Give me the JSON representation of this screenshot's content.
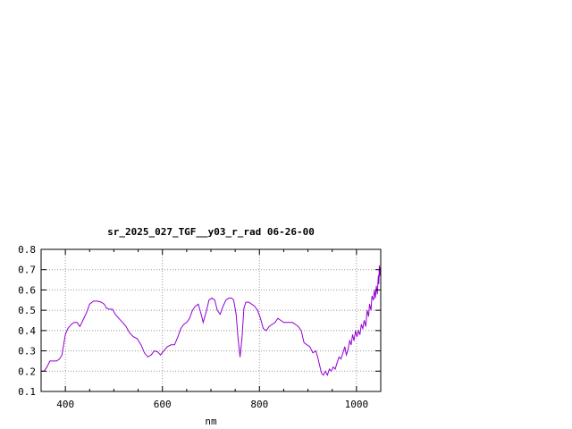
{
  "chart_data": {
    "type": "line",
    "title": "sr_2025_027_TGF__y03_r_rad 06-26-00",
    "xlabel": "nm",
    "ylabel": "",
    "xlim": [
      350,
      1050
    ],
    "ylim": [
      0.1,
      0.8
    ],
    "x_ticks": [
      "400",
      "600",
      "800",
      "1000"
    ],
    "y_ticks": [
      "0.1",
      "0.2",
      "0.3",
      "0.4",
      "0.5",
      "0.6",
      "0.7",
      "0.8"
    ],
    "grid": true,
    "legend": "none",
    "series": [
      {
        "color": "#9400d3",
        "points": [
          [
            350,
            0.2
          ],
          [
            356,
            0.2
          ],
          [
            362,
            0.22
          ],
          [
            368,
            0.25
          ],
          [
            375,
            0.25
          ],
          [
            382,
            0.25
          ],
          [
            388,
            0.26
          ],
          [
            393,
            0.28
          ],
          [
            400,
            0.38
          ],
          [
            405,
            0.41
          ],
          [
            412,
            0.43
          ],
          [
            418,
            0.44
          ],
          [
            424,
            0.44
          ],
          [
            430,
            0.42
          ],
          [
            436,
            0.45
          ],
          [
            444,
            0.49
          ],
          [
            450,
            0.53
          ],
          [
            458,
            0.545
          ],
          [
            466,
            0.545
          ],
          [
            474,
            0.54
          ],
          [
            480,
            0.53
          ],
          [
            485,
            0.51
          ],
          [
            490,
            0.505
          ],
          [
            497,
            0.505
          ],
          [
            503,
            0.48
          ],
          [
            510,
            0.46
          ],
          [
            518,
            0.44
          ],
          [
            525,
            0.42
          ],
          [
            532,
            0.39
          ],
          [
            540,
            0.37
          ],
          [
            548,
            0.36
          ],
          [
            556,
            0.33
          ],
          [
            563,
            0.29
          ],
          [
            570,
            0.27
          ],
          [
            577,
            0.28
          ],
          [
            583,
            0.3
          ],
          [
            590,
            0.295
          ],
          [
            596,
            0.28
          ],
          [
            603,
            0.3
          ],
          [
            610,
            0.32
          ],
          [
            618,
            0.33
          ],
          [
            625,
            0.33
          ],
          [
            632,
            0.37
          ],
          [
            638,
            0.41
          ],
          [
            644,
            0.43
          ],
          [
            650,
            0.44
          ],
          [
            656,
            0.46
          ],
          [
            662,
            0.5
          ],
          [
            668,
            0.52
          ],
          [
            674,
            0.53
          ],
          [
            680,
            0.48
          ],
          [
            684,
            0.44
          ],
          [
            690,
            0.49
          ],
          [
            696,
            0.55
          ],
          [
            702,
            0.56
          ],
          [
            708,
            0.55
          ],
          [
            713,
            0.5
          ],
          [
            719,
            0.48
          ],
          [
            725,
            0.52
          ],
          [
            731,
            0.55
          ],
          [
            737,
            0.56
          ],
          [
            743,
            0.56
          ],
          [
            747,
            0.55
          ],
          [
            752,
            0.48
          ],
          [
            756,
            0.36
          ],
          [
            760,
            0.27
          ],
          [
            764,
            0.36
          ],
          [
            768,
            0.51
          ],
          [
            772,
            0.54
          ],
          [
            778,
            0.54
          ],
          [
            784,
            0.53
          ],
          [
            790,
            0.52
          ],
          [
            796,
            0.5
          ],
          [
            802,
            0.46
          ],
          [
            808,
            0.41
          ],
          [
            814,
            0.4
          ],
          [
            820,
            0.42
          ],
          [
            826,
            0.43
          ],
          [
            832,
            0.44
          ],
          [
            838,
            0.46
          ],
          [
            844,
            0.45
          ],
          [
            850,
            0.44
          ],
          [
            856,
            0.44
          ],
          [
            862,
            0.44
          ],
          [
            868,
            0.44
          ],
          [
            874,
            0.43
          ],
          [
            880,
            0.42
          ],
          [
            886,
            0.4
          ],
          [
            892,
            0.34
          ],
          [
            898,
            0.33
          ],
          [
            904,
            0.32
          ],
          [
            910,
            0.29
          ],
          [
            916,
            0.3
          ],
          [
            920,
            0.27
          ],
          [
            925,
            0.22
          ],
          [
            928,
            0.19
          ],
          [
            932,
            0.18
          ],
          [
            936,
            0.2
          ],
          [
            940,
            0.18
          ],
          [
            944,
            0.21
          ],
          [
            948,
            0.2
          ],
          [
            952,
            0.22
          ],
          [
            956,
            0.21
          ],
          [
            960,
            0.24
          ],
          [
            964,
            0.27
          ],
          [
            968,
            0.26
          ],
          [
            972,
            0.29
          ],
          [
            976,
            0.32
          ],
          [
            979,
            0.28
          ],
          [
            982,
            0.3
          ],
          [
            986,
            0.35
          ],
          [
            989,
            0.33
          ],
          [
            992,
            0.38
          ],
          [
            995,
            0.35
          ],
          [
            998,
            0.4
          ],
          [
            1001,
            0.37
          ],
          [
            1004,
            0.4
          ],
          [
            1007,
            0.38
          ],
          [
            1010,
            0.43
          ],
          [
            1013,
            0.41
          ],
          [
            1016,
            0.45
          ],
          [
            1019,
            0.42
          ],
          [
            1022,
            0.5
          ],
          [
            1025,
            0.47
          ],
          [
            1027,
            0.53
          ],
          [
            1030,
            0.5
          ],
          [
            1032,
            0.57
          ],
          [
            1035,
            0.55
          ],
          [
            1037,
            0.6
          ],
          [
            1039,
            0.56
          ],
          [
            1041,
            0.62
          ],
          [
            1043,
            0.58
          ],
          [
            1045,
            0.67
          ],
          [
            1046,
            0.63
          ],
          [
            1047,
            0.72
          ],
          [
            1048,
            0.67
          ],
          [
            1049,
            0.71
          ],
          [
            1050,
            0.7
          ]
        ]
      }
    ]
  }
}
